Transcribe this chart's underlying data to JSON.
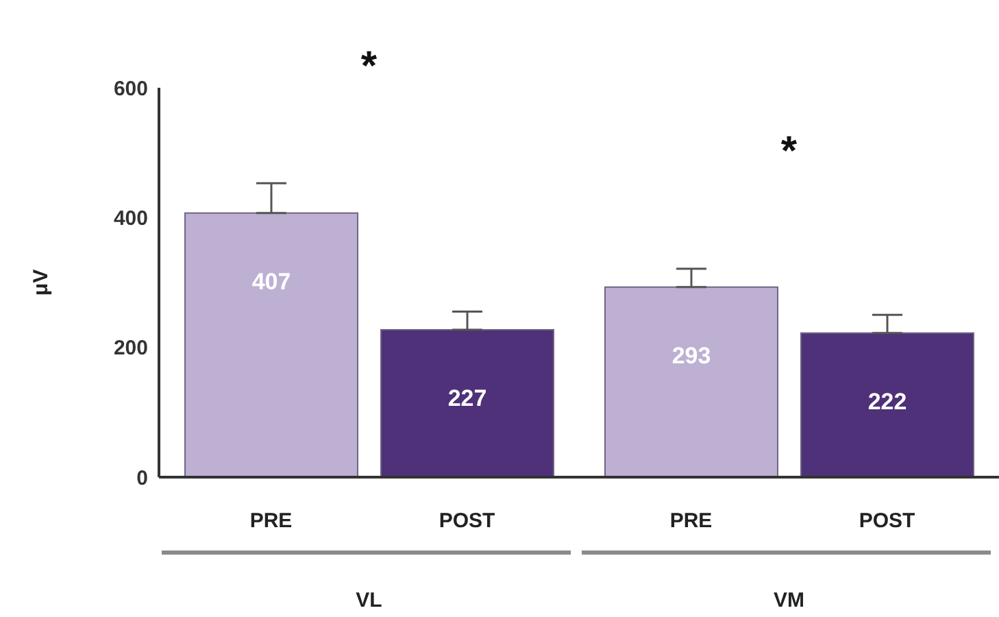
{
  "chart_data": {
    "type": "bar",
    "categories": [
      "VL",
      "VM"
    ],
    "series": [
      {
        "name": "PRE",
        "color": "#bdb0d3",
        "values": [
          407,
          293
        ],
        "errors": [
          [
            407,
            453
          ],
          [
            293,
            321
          ]
        ]
      },
      {
        "name": "POST",
        "color": "#4e3178",
        "values": [
          227,
          222
        ],
        "errors": [
          [
            227,
            255
          ],
          [
            222,
            250
          ]
        ]
      }
    ],
    "ylabel": "μV",
    "ylim": [
      0,
      600
    ],
    "yticks": [
      0,
      200,
      400,
      600
    ],
    "data_labels": true,
    "annotations": [
      "*",
      "*"
    ]
  }
}
